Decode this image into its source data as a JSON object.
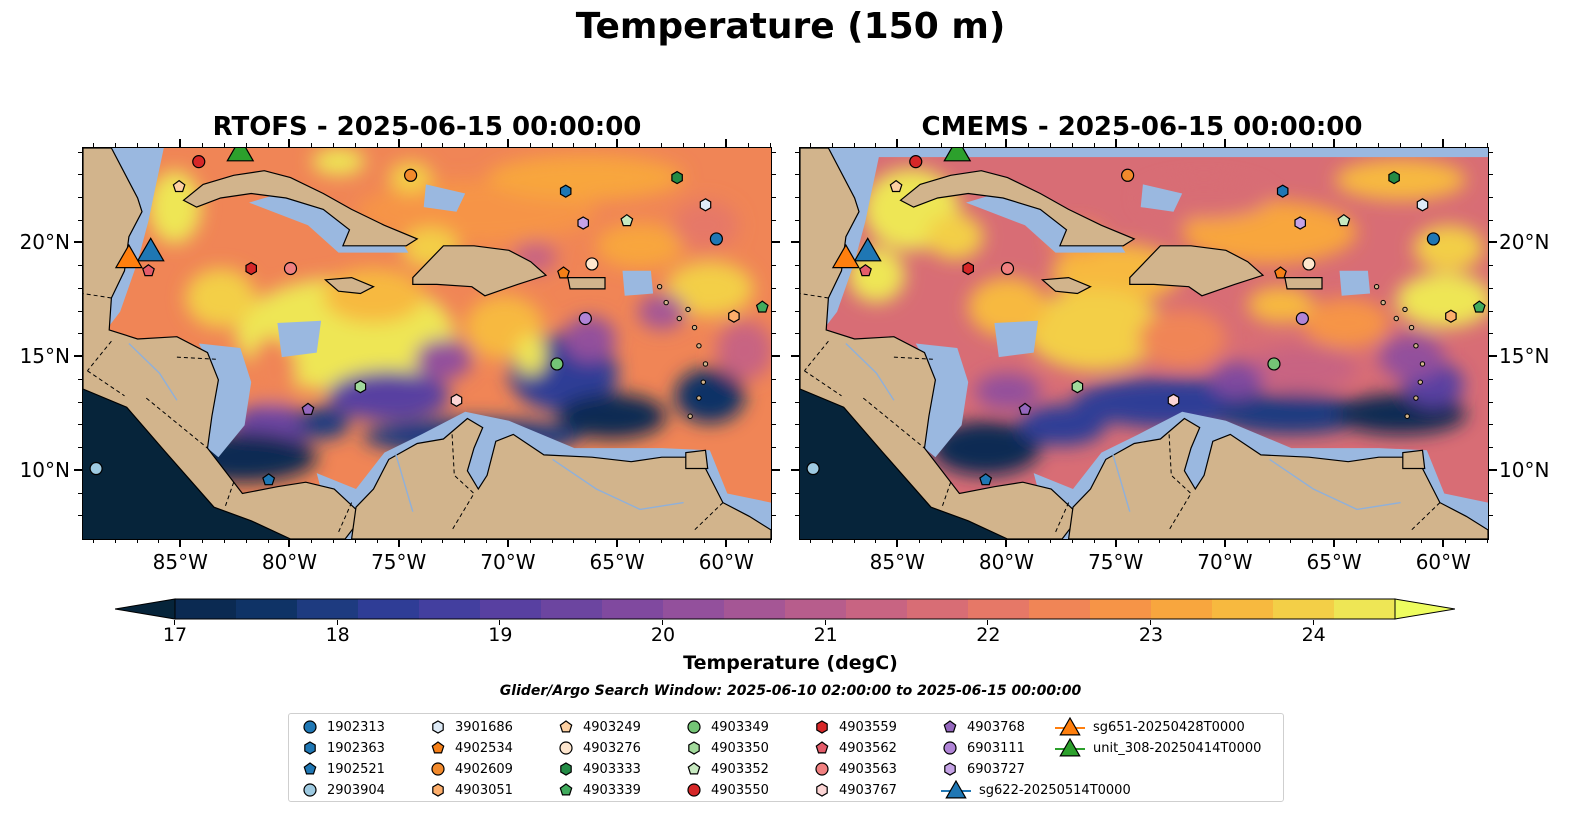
{
  "title": "Temperature (150 m)",
  "panels": [
    {
      "title": "RTOFS - 2025-06-15 00:00:00"
    },
    {
      "title": "CMEMS - 2025-06-15 00:00:00"
    }
  ],
  "axes": {
    "lon_ticks": [
      "85°W",
      "80°W",
      "75°W",
      "70°W",
      "65°W",
      "60°W"
    ],
    "lon_values": [
      -85,
      -80,
      -75,
      -70,
      -65,
      -60
    ],
    "lat_ticks": [
      "20°N",
      "15°N",
      "10°N"
    ],
    "lat_values": [
      20,
      15,
      10
    ],
    "lon_range": [
      -89.5,
      -58.0
    ],
    "lat_range": [
      7.0,
      24.2
    ]
  },
  "colorbar": {
    "label": "Temperature (degC)",
    "ticks": [
      "17",
      "18",
      "19",
      "20",
      "21",
      "22",
      "23",
      "24"
    ],
    "range": [
      17,
      24.5
    ],
    "colors": [
      "#0b2a52",
      "#0f3366",
      "#1e3b80",
      "#2f3d96",
      "#433f9f",
      "#5840a1",
      "#6c45a0",
      "#80499f",
      "#93509c",
      "#a55695",
      "#b75d8c",
      "#c86482",
      "#d86d75",
      "#e67867",
      "#f08556",
      "#f69447",
      "#f8a63e",
      "#f7b93f",
      "#f3cf47",
      "#eee655"
    ],
    "under_color": "#06243a",
    "over_color": "#eefd5f"
  },
  "map_colors": {
    "land": "#d2b48c",
    "shelf": "#9ab8e0",
    "coast": "#000000"
  },
  "search_window": "Glider/Argo Search Window: 2025-06-10 02:00:00 to 2025-06-15 00:00:00",
  "legend": [
    {
      "id": "1902313",
      "color": "#1f77b4",
      "marker": "circle",
      "lon": -60.5,
      "lat": 20.2
    },
    {
      "id": "1902363",
      "color": "#1f77b4",
      "marker": "hexagon",
      "lon": -67.4,
      "lat": 22.3
    },
    {
      "id": "1902521",
      "color": "#1f77b4",
      "marker": "pentagon",
      "lon": -81.0,
      "lat": 9.6
    },
    {
      "id": "2903904",
      "color": "#9ecae1",
      "marker": "circle",
      "lon": -88.9,
      "lat": 10.1
    },
    {
      "id": "3901686",
      "color": "#deebf7",
      "marker": "hexagon",
      "lon": -61.0,
      "lat": 21.7
    },
    {
      "id": "4902534",
      "color": "#f57f17",
      "marker": "pentagon",
      "lon": -67.5,
      "lat": 18.7
    },
    {
      "id": "4902609",
      "color": "#f28a2c",
      "marker": "circle",
      "lon": -74.5,
      "lat": 23.0
    },
    {
      "id": "4903051",
      "color": "#fdae6b",
      "marker": "hexagon",
      "lon": -59.7,
      "lat": 16.8
    },
    {
      "id": "4903249",
      "color": "#fdd0a2",
      "marker": "pentagon",
      "lon": -85.1,
      "lat": 22.5
    },
    {
      "id": "4903276",
      "color": "#fee6ce",
      "marker": "circle",
      "lon": -66.2,
      "lat": 19.1
    },
    {
      "id": "4903333",
      "color": "#238b45",
      "marker": "hexagon",
      "lon": -62.3,
      "lat": 22.9
    },
    {
      "id": "4903339",
      "color": "#41ab5d",
      "marker": "pentagon",
      "lon": -58.4,
      "lat": 17.2
    },
    {
      "id": "4903349",
      "color": "#74c476",
      "marker": "circle",
      "lon": -67.8,
      "lat": 14.7
    },
    {
      "id": "4903350",
      "color": "#a1d99b",
      "marker": "hexagon",
      "lon": -76.8,
      "lat": 13.7
    },
    {
      "id": "4903352",
      "color": "#c7e9c0",
      "marker": "pentagon",
      "lon": -64.6,
      "lat": 21.0
    },
    {
      "id": "4903550",
      "color": "#d62728",
      "marker": "circle",
      "lon": -84.2,
      "lat": 23.6
    },
    {
      "id": "4903559",
      "color": "#d62728",
      "marker": "hexagon",
      "lon": -81.8,
      "lat": 18.9
    },
    {
      "id": "4903562",
      "color": "#e45c6a",
      "marker": "pentagon",
      "lon": -86.5,
      "lat": 18.8
    },
    {
      "id": "4903563",
      "color": "#f08080",
      "marker": "circle",
      "lon": -80.0,
      "lat": 18.9
    },
    {
      "id": "4903767",
      "color": "#fcd5d5",
      "marker": "hexagon",
      "lon": -72.4,
      "lat": 13.1
    },
    {
      "id": "4903768",
      "color": "#9467bd",
      "marker": "pentagon",
      "lon": -79.2,
      "lat": 12.7
    },
    {
      "id": "6903111",
      "color": "#b084d6",
      "marker": "circle",
      "lon": -66.5,
      "lat": 16.7
    },
    {
      "id": "6903727",
      "color": "#c5a3e6",
      "marker": "hexagon",
      "lon": -66.6,
      "lat": 20.9
    },
    {
      "id": "sg622-20250514T0000",
      "color": "#1f77b4",
      "marker": "triangle",
      "line": true,
      "lon": -86.4,
      "lat": 19.7
    },
    {
      "id": "sg651-20250428T0000",
      "color": "#ff7f0e",
      "marker": "triangle",
      "line": true,
      "lon": -87.4,
      "lat": 19.4
    },
    {
      "id": "unit_308-20250414T0000",
      "color": "#2ca02c",
      "marker": "triangle",
      "line": true,
      "lon": -82.3,
      "lat": 24.1
    }
  ]
}
